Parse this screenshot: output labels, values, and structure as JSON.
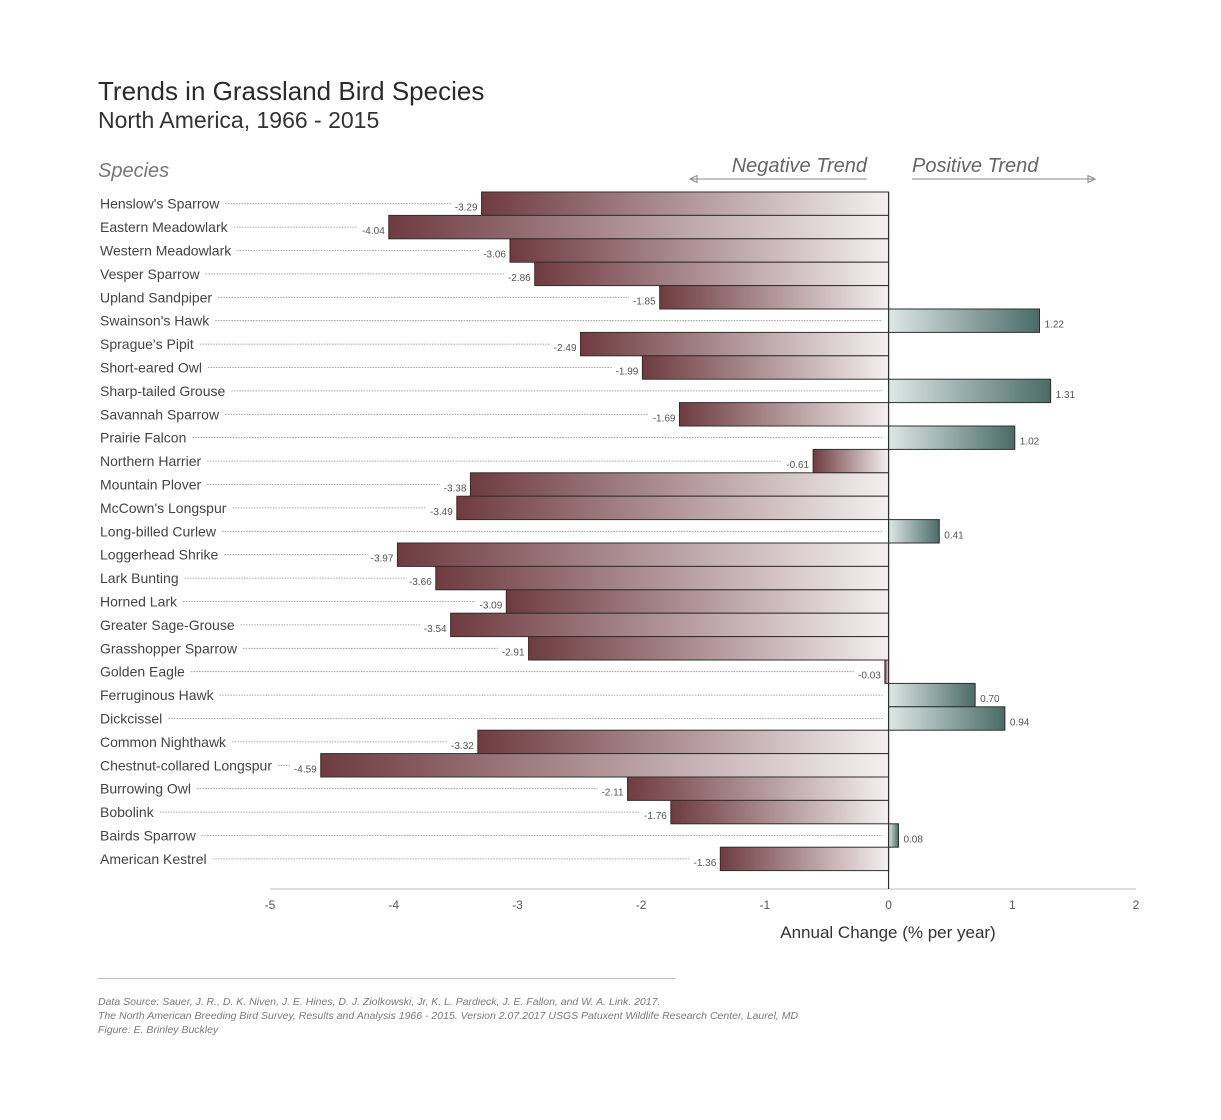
{
  "title": "Trends in Grassland Bird Species",
  "subtitle": "North America, 1966 - 2015",
  "source": {
    "line1": "Data Source: Sauer, J. R., D. K. Niven, J. E. Hines, D. J. Ziolkowski, Jr, K. L. Pardieck, J. E. Fallon, and W. A. Link. 2017.",
    "line2": "The North American Breeding Bird Survey, Results and Analysis 1966 - 2015. Version 2.07.2017 USGS Patuxent Wildlife Research Center, Laurel, MD",
    "line3": "Figure: E. Brinley Buckley"
  },
  "colors": {
    "negative_dark": "#6e3b40",
    "negative_light": "#f4f0f0",
    "positive_dark": "#4a6b66",
    "positive_light": "#dde8e6",
    "bar_stroke": "#2f2f2f",
    "axis": "#bfbfbf"
  },
  "chart_data": {
    "type": "bar",
    "orientation": "horizontal",
    "category_header": "Species",
    "negative_label": "Negative Trend",
    "positive_label": "Positive Trend",
    "xlabel": "Annual Change (% per year)",
    "xlim": [
      -5,
      2
    ],
    "xticks": [
      "-5",
      "-4",
      "-3",
      "-2",
      "-1",
      "0",
      "1",
      "2"
    ],
    "categories": [
      "Henslow's Sparrow",
      "Eastern Meadowlark",
      "Western Meadowlark",
      "Vesper Sparrow",
      "Upland Sandpiper",
      "Swainson's Hawk",
      "Sprague's Pipit",
      "Short-eared Owl",
      "Sharp-tailed Grouse",
      "Savannah Sparrow",
      "Prairie Falcon",
      "Northern Harrier",
      "Mountain Plover",
      "McCown's Longspur",
      "Long-billed Curlew",
      "Loggerhead Shrike",
      "Lark Bunting",
      "Horned Lark",
      "Greater Sage-Grouse",
      "Grasshopper Sparrow",
      "Golden Eagle",
      "Ferruginous Hawk",
      "Dickcissel",
      "Common Nighthawk",
      "Chestnut-collared Longspur",
      "Burrowing Owl",
      "Bobolink",
      "Bairds Sparrow",
      "American Kestrel"
    ],
    "values": [
      -3.29,
      -4.04,
      -3.06,
      -2.86,
      -1.85,
      1.22,
      -2.49,
      -1.99,
      1.31,
      -1.69,
      1.02,
      -0.61,
      -3.38,
      -3.49,
      0.41,
      -3.97,
      -3.66,
      -3.09,
      -3.54,
      -2.91,
      -0.03,
      0.7,
      0.94,
      -3.32,
      -4.59,
      -2.11,
      -1.76,
      0.08,
      -1.36
    ],
    "value_labels": [
      "-3.29",
      "-4.04",
      "-3.06",
      "-2.86",
      "-1.85",
      "1.22",
      "-2.49",
      "-1.99",
      "1.31",
      "-1.69",
      "1.02",
      "-0.61",
      "-3.38",
      "-3.49",
      "0.41",
      "-3.97",
      "-3.66",
      "-3.09",
      "-3.54",
      "-2.91",
      "-0.03",
      "0.70",
      "0.94",
      "-3.32",
      "-4.59",
      "-2.11",
      "-1.76",
      "0.08",
      "-1.36"
    ],
    "grid": false
  }
}
